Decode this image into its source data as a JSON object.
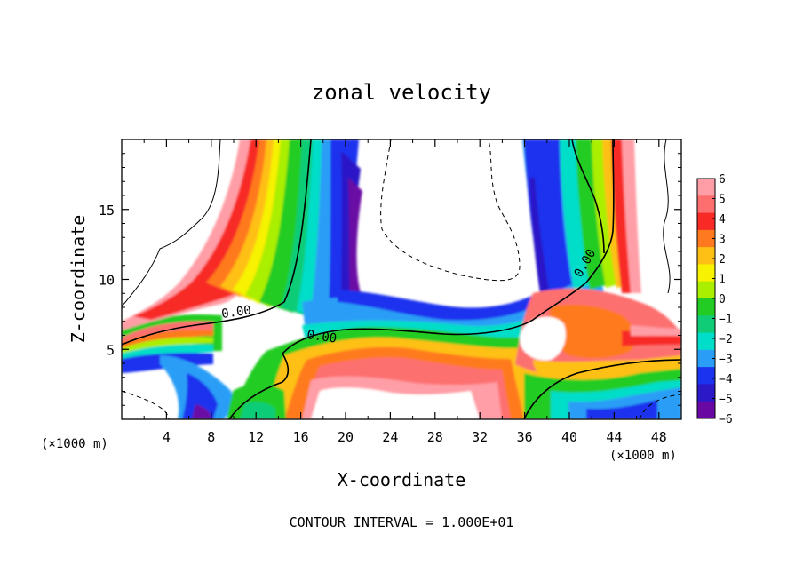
{
  "chart_data": {
    "type": "heatmap",
    "title": "zonal velocity",
    "xlabel": "X-coordinate",
    "ylabel": "Z-coordinate",
    "x_unit": "(×1000 m)",
    "z_unit": "(×1000 m)",
    "xlim": [
      0,
      50
    ],
    "ylim": [
      0,
      20
    ],
    "x_ticks": [
      4,
      8,
      12,
      16,
      20,
      24,
      28,
      32,
      36,
      40,
      44,
      48
    ],
    "y_ticks": [
      5,
      10,
      15
    ],
    "footer": "CONTOUR INTERVAL = 1.000E+01",
    "contour_labels": [
      {
        "text": "0.00",
        "x": 10.5,
        "z": 7.7
      },
      {
        "text": "0.00",
        "x": 17.8,
        "z": 5.9
      },
      {
        "text": "0.00",
        "x": 42.0,
        "z": 11.1
      }
    ],
    "colorbar": {
      "labels": [
        "6",
        "5",
        "4",
        "3",
        "2",
        "1",
        "0",
        "−1",
        "−2",
        "−3",
        "−4",
        "−5",
        "−6"
      ],
      "colors": [
        "#ff9ea6",
        "#fd6f6f",
        "#f72a25",
        "#ff7a1e",
        "#ffc015",
        "#f6f200",
        "#aaee00",
        "#22cc22",
        "#11cc77",
        "#00ddc8",
        "#2a9ef7",
        "#1b33ee",
        "#2b18c7",
        "#6a08a4"
      ]
    }
  }
}
